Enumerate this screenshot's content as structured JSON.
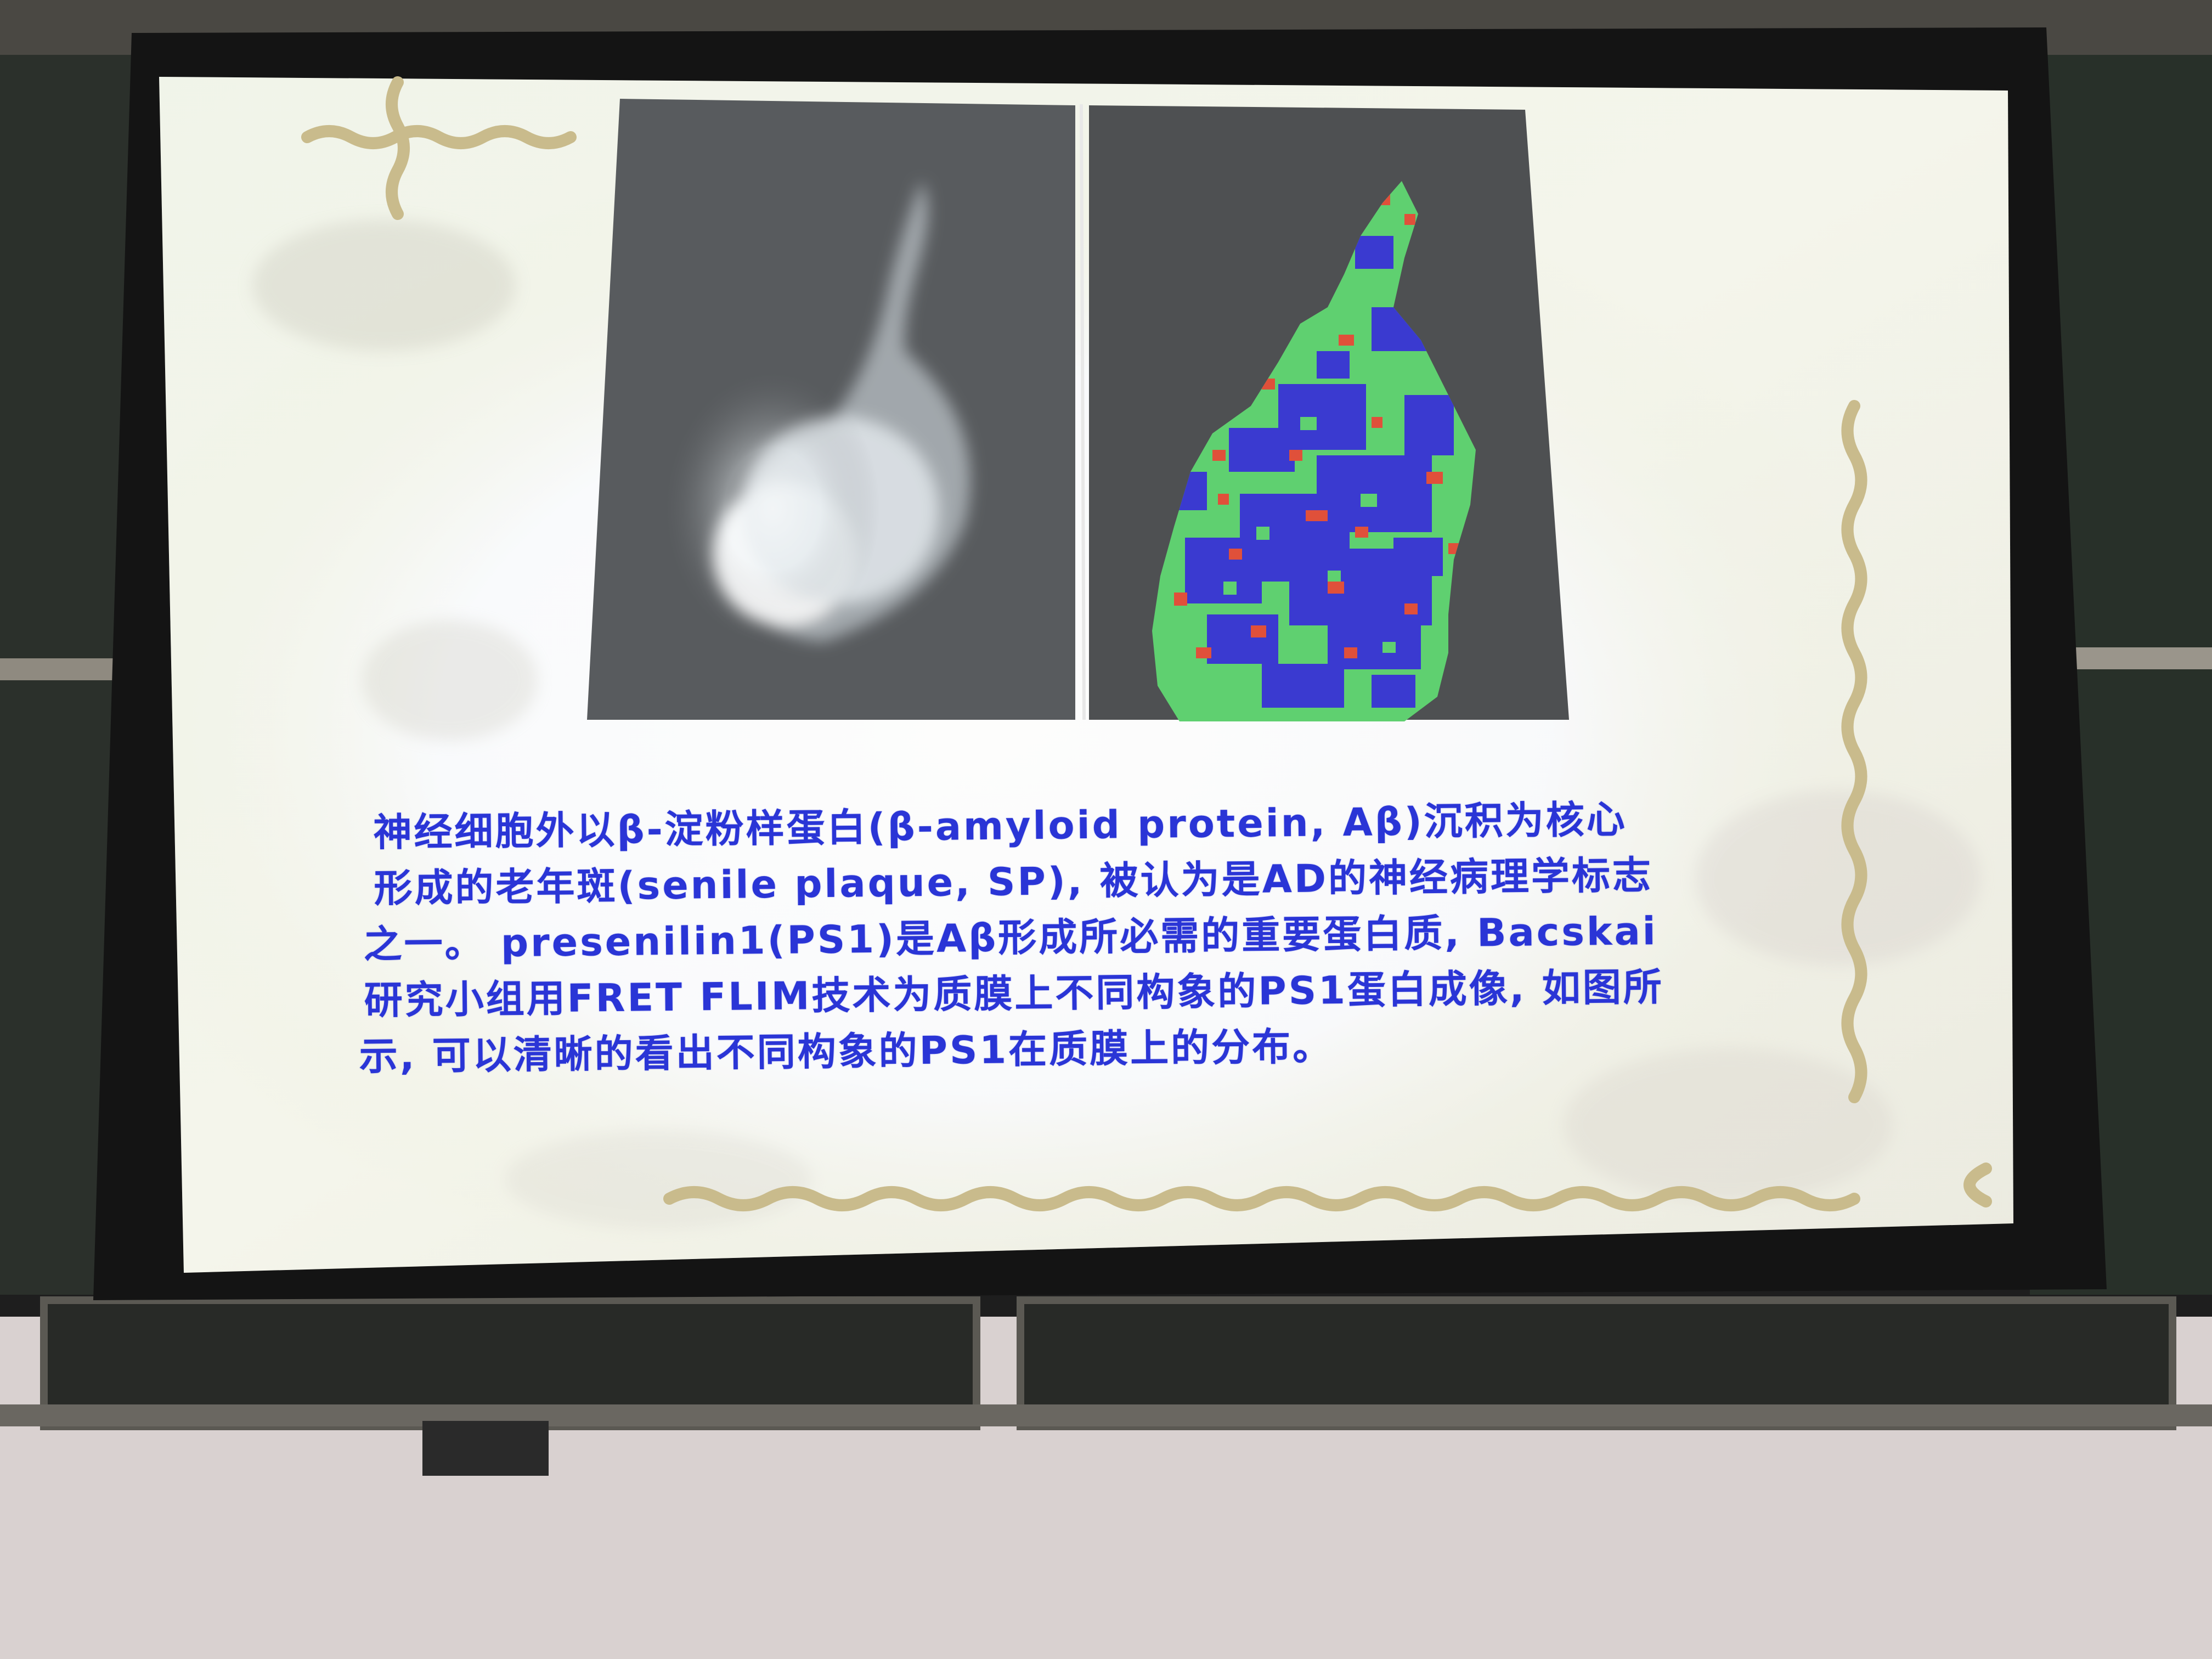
{
  "slide": {
    "caption_lines": [
      "神经细胞外以β-淀粉样蛋白(β-amyloid protein, Aβ)沉积为核心",
      "形成的老年斑(senile plaque, SP), 被认为是AD的神经病理学标志",
      "之一。 presenilin1(PS1)是Aβ形成所必需的重要蛋白质, Bacskai",
      "研究小组用FRET FLIM技术为质膜上不同构象的PS1蛋白成像, 如图所",
      "示, 可以清晰的看出不同构象的PS1在质膜上的分布。"
    ]
  },
  "colors": {
    "caption_text": "#2a35d6",
    "border_vine": "#c9bb8c",
    "flim_blue": "#3a3ad0",
    "flim_green": "#5fd070",
    "flim_red": "#e0503a"
  }
}
